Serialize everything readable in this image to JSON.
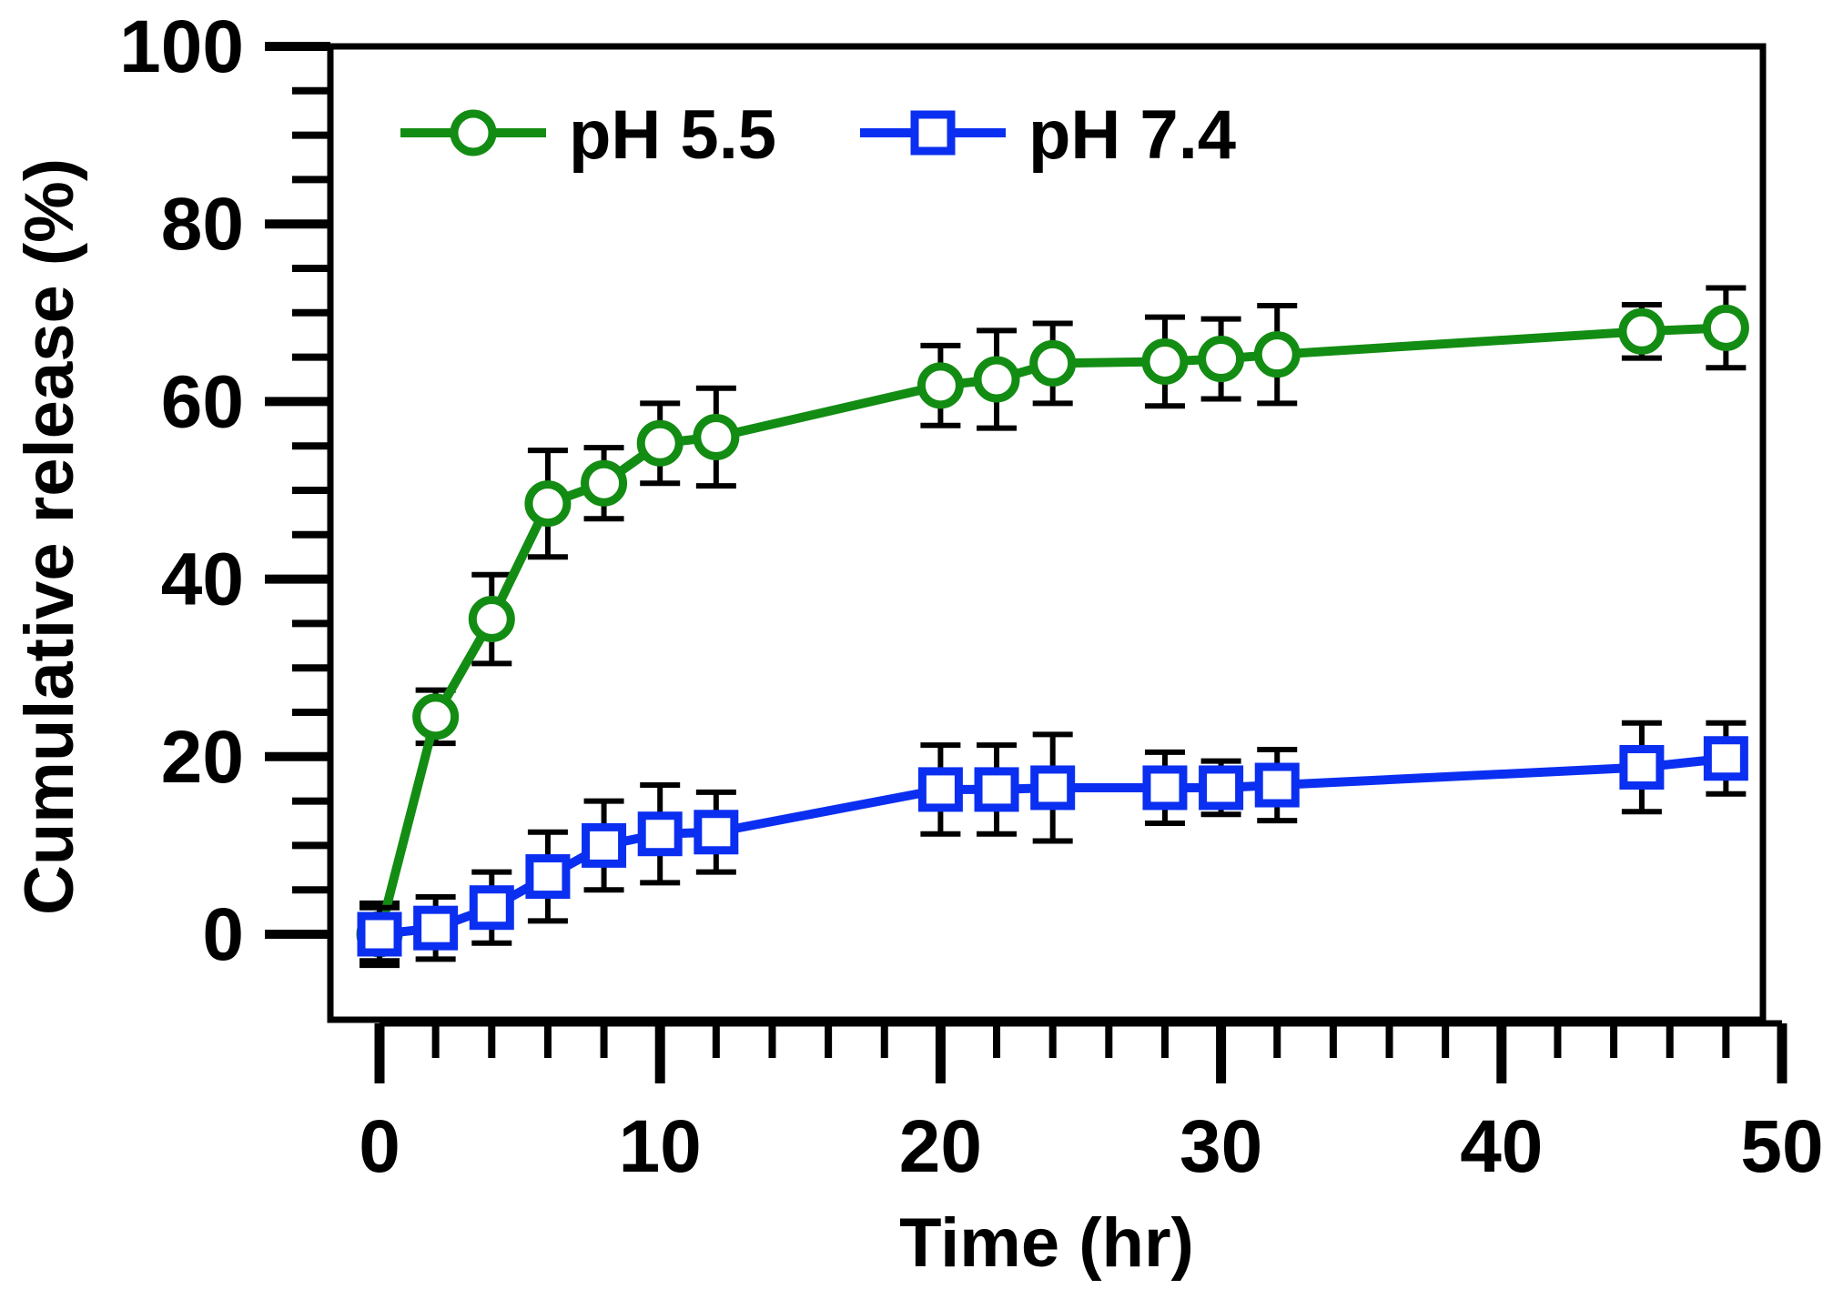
{
  "chart_data": {
    "type": "line",
    "title": "",
    "xlabel": "Time (hr)",
    "ylabel": "Cumulative release (%)",
    "xlim": [
      -2,
      50
    ],
    "ylim": [
      -10,
      100
    ],
    "x_ticks": [
      0,
      10,
      20,
      30,
      40,
      50
    ],
    "y_ticks": [
      0,
      20,
      40,
      60,
      80,
      100
    ],
    "x_tick_labels": [
      "0",
      "10",
      "20",
      "30",
      "40",
      "50"
    ],
    "y_tick_labels": [
      "0",
      "20",
      "40",
      "60",
      "80",
      "100"
    ],
    "x_minor_step": 2,
    "y_minor_step": 5,
    "legend_position": "top-left",
    "series": [
      {
        "name": "pH 5.5",
        "color": "#138c13",
        "marker": "circle",
        "x": [
          0,
          2,
          4,
          6,
          8,
          10,
          12,
          20,
          22,
          24,
          28,
          30,
          32,
          45,
          48
        ],
        "y": [
          0,
          24.5,
          35.5,
          48.5,
          50.8,
          55.3,
          56,
          61.8,
          62.5,
          64.3,
          64.5,
          64.8,
          65.3,
          67.9,
          68.3
        ],
        "err": [
          3.5,
          3,
          5,
          6,
          4,
          4.5,
          5.5,
          4.5,
          5.5,
          4.5,
          5,
          4.5,
          5.5,
          3,
          4.5
        ]
      },
      {
        "name": "pH 7.4",
        "color": "#0b2ff0",
        "marker": "square",
        "x": [
          0,
          2,
          4,
          6,
          8,
          10,
          12,
          20,
          22,
          24,
          28,
          30,
          32,
          45,
          48
        ],
        "y": [
          0,
          0.7,
          3,
          6.5,
          10,
          11.3,
          11.5,
          16.3,
          16.3,
          16.5,
          16.5,
          16.5,
          16.8,
          18.8,
          19.8
        ],
        "err": [
          3,
          3.5,
          4,
          5,
          5,
          5.5,
          4.5,
          5,
          5,
          6,
          4,
          3,
          4,
          5,
          4
        ]
      }
    ]
  }
}
